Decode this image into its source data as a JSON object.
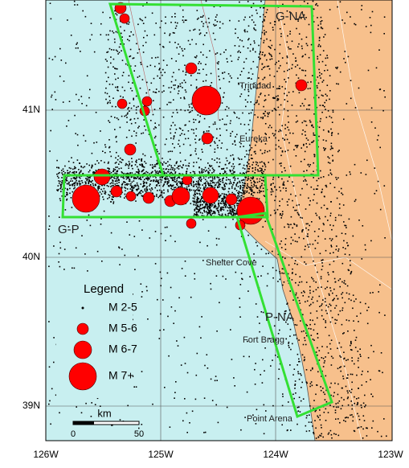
{
  "regions": [
    "G-NA",
    "G-P",
    "P-NA"
  ],
  "places": [
    "Trinidad",
    "Eureka",
    "Shelter Cove",
    "Fort Bragg",
    "Point Arena"
  ],
  "legend": {
    "title": "Legend",
    "items": [
      "M 2-5",
      "M 5-6",
      "M 6-7",
      "M 7+"
    ]
  },
  "scale_bar": {
    "unit": "km",
    "labels": [
      "0",
      "50"
    ]
  },
  "x_axis_labels": [
    "126W",
    "125W",
    "124W",
    "123W"
  ],
  "y_axis_labels": [
    "41N",
    "40N",
    "39N"
  ]
}
